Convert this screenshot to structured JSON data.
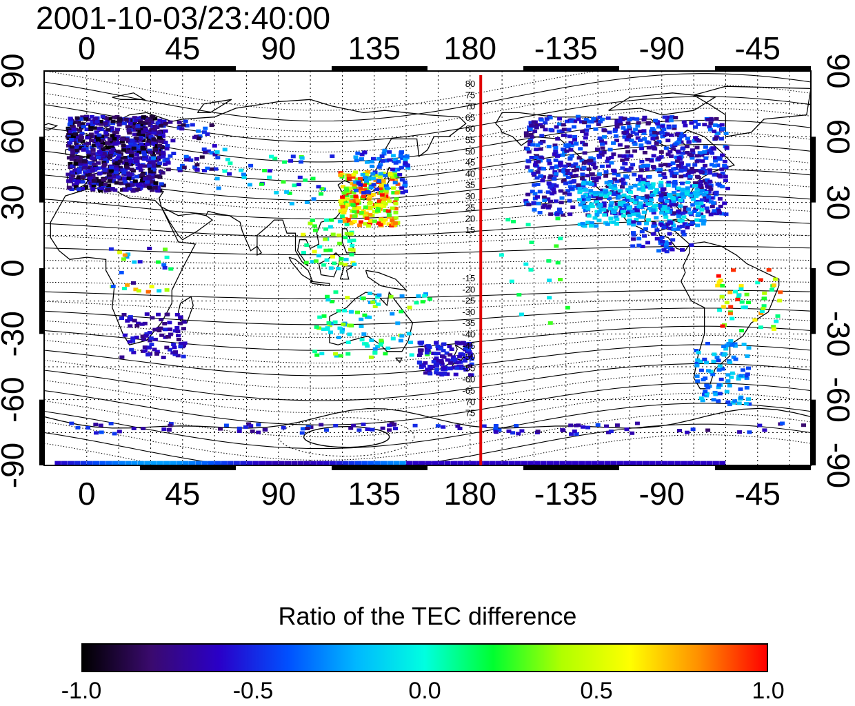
{
  "title": "2001-10-03/23:40:00",
  "x_tick_labels": [
    "0",
    "45",
    "90",
    "135",
    "180",
    "-135",
    "-90",
    "-45"
  ],
  "y_tick_labels_left": [
    "90",
    "60",
    "30",
    "0",
    "-30",
    "-60",
    "-90"
  ],
  "y_tick_labels_right": [
    "90",
    "60",
    "30",
    "0",
    "-30",
    "-60",
    "-90"
  ],
  "map": {
    "lon_range": [
      -20,
      340
    ],
    "lat_range": [
      -90,
      90
    ],
    "grid": true,
    "red_line_longitude": 185,
    "north_contour_labels": [
      "80",
      "75",
      "70",
      "65",
      "60",
      "55",
      "50",
      "45",
      "40",
      "35",
      "30",
      "25",
      "20",
      "15"
    ],
    "south_contour_labels": [
      "-15",
      "-20",
      "-25",
      "-30",
      "-35",
      "-40",
      "-45",
      "-50",
      "-55",
      "-60",
      "-65",
      "70",
      "75"
    ]
  },
  "colorbar": {
    "title": "Ratio of the TEC difference",
    "min": -1.0,
    "max": 1.0,
    "tick_labels": [
      "-1.0",
      "-0.5",
      "0.0",
      "0.5",
      "1.0"
    ],
    "colors": [
      "#000000",
      "#3a0a6e",
      "#2a00c8",
      "#0050ff",
      "#00b8ff",
      "#00ffe0",
      "#00ff30",
      "#b0ff00",
      "#ffff00",
      "#ff9000",
      "#ff0000"
    ]
  }
}
